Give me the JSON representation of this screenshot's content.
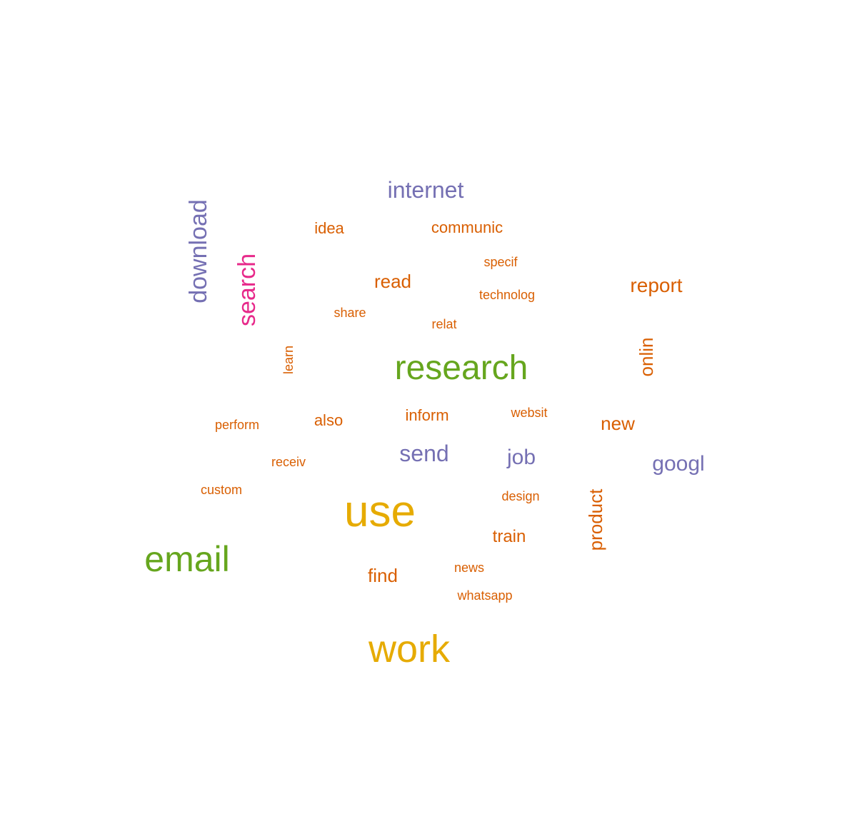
{
  "palette": {
    "orange": "#d95f02",
    "purple": "#7570b3",
    "green": "#66a61e",
    "magenta": "#e7298a",
    "gold": "#e6ab02"
  },
  "words": [
    {
      "text": "internet",
      "color": "#7570b3",
      "orientation": "horizontal"
    },
    {
      "text": "idea",
      "color": "#d95f02",
      "orientation": "horizontal"
    },
    {
      "text": "communic",
      "color": "#d95f02",
      "orientation": "horizontal"
    },
    {
      "text": "download",
      "color": "#7570b3",
      "orientation": "vertical"
    },
    {
      "text": "search",
      "color": "#e7298a",
      "orientation": "vertical"
    },
    {
      "text": "specif",
      "color": "#d95f02",
      "orientation": "horizontal"
    },
    {
      "text": "read",
      "color": "#d95f02",
      "orientation": "horizontal"
    },
    {
      "text": "report",
      "color": "#d95f02",
      "orientation": "horizontal"
    },
    {
      "text": "technolog",
      "color": "#d95f02",
      "orientation": "horizontal"
    },
    {
      "text": "share",
      "color": "#d95f02",
      "orientation": "horizontal"
    },
    {
      "text": "relat",
      "color": "#d95f02",
      "orientation": "horizontal"
    },
    {
      "text": "learn",
      "color": "#d95f02",
      "orientation": "vertical"
    },
    {
      "text": "research",
      "color": "#66a61e",
      "orientation": "horizontal"
    },
    {
      "text": "onlin",
      "color": "#d95f02",
      "orientation": "vertical"
    },
    {
      "text": "perform",
      "color": "#d95f02",
      "orientation": "horizontal"
    },
    {
      "text": "also",
      "color": "#d95f02",
      "orientation": "horizontal"
    },
    {
      "text": "inform",
      "color": "#d95f02",
      "orientation": "horizontal"
    },
    {
      "text": "websit",
      "color": "#d95f02",
      "orientation": "horizontal"
    },
    {
      "text": "new",
      "color": "#d95f02",
      "orientation": "horizontal"
    },
    {
      "text": "send",
      "color": "#7570b3",
      "orientation": "horizontal"
    },
    {
      "text": "job",
      "color": "#7570b3",
      "orientation": "horizontal"
    },
    {
      "text": "receiv",
      "color": "#d95f02",
      "orientation": "horizontal"
    },
    {
      "text": "googl",
      "color": "#7570b3",
      "orientation": "horizontal"
    },
    {
      "text": "custom",
      "color": "#d95f02",
      "orientation": "horizontal"
    },
    {
      "text": "design",
      "color": "#d95f02",
      "orientation": "horizontal"
    },
    {
      "text": "use",
      "color": "#e6ab02",
      "orientation": "horizontal"
    },
    {
      "text": "product",
      "color": "#d95f02",
      "orientation": "vertical"
    },
    {
      "text": "train",
      "color": "#d95f02",
      "orientation": "horizontal"
    },
    {
      "text": "email",
      "color": "#66a61e",
      "orientation": "horizontal"
    },
    {
      "text": "news",
      "color": "#d95f02",
      "orientation": "horizontal"
    },
    {
      "text": "find",
      "color": "#d95f02",
      "orientation": "horizontal"
    },
    {
      "text": "whatsapp",
      "color": "#d95f02",
      "orientation": "horizontal"
    },
    {
      "text": "work",
      "color": "#e6ab02",
      "orientation": "horizontal"
    }
  ]
}
